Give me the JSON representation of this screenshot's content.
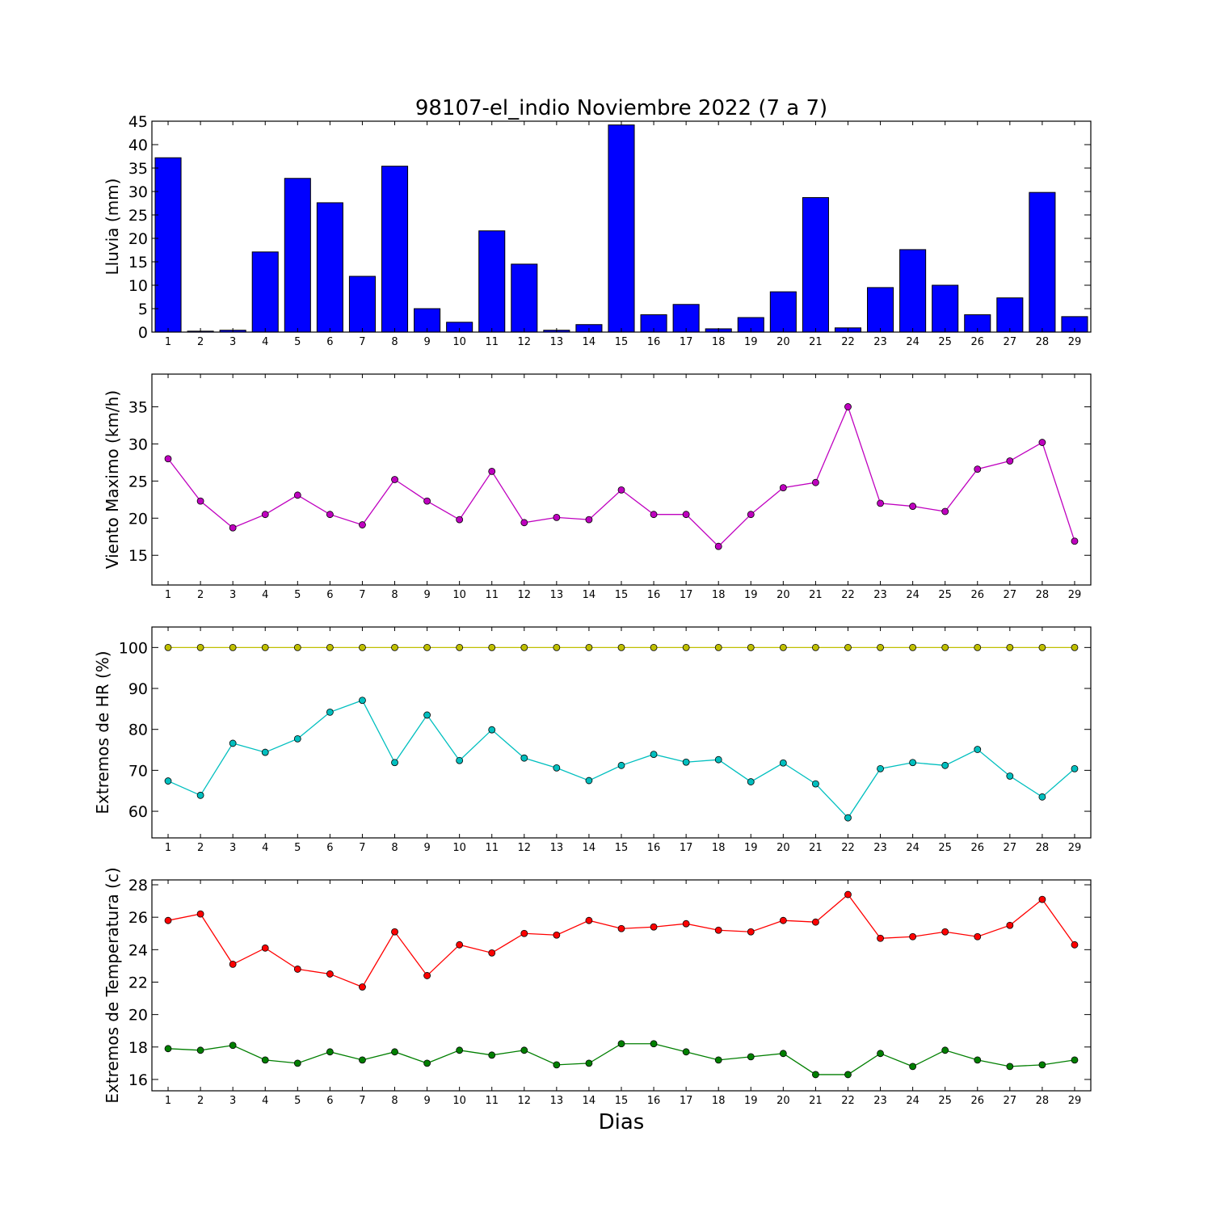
{
  "figure": {
    "title": "98107-el_indio Noviembre 2022  (7 a 7)",
    "xlabel": "Dias"
  },
  "chart_data": [
    {
      "type": "bar",
      "ylabel": "Lluvia (mm)",
      "categories": [
        1,
        2,
        3,
        4,
        5,
        6,
        7,
        8,
        9,
        10,
        11,
        12,
        13,
        14,
        15,
        16,
        17,
        18,
        19,
        20,
        21,
        22,
        23,
        24,
        25,
        26,
        27,
        28,
        29
      ],
      "ylim": [
        0,
        45
      ],
      "yticks": [
        0,
        5,
        10,
        15,
        20,
        25,
        30,
        35,
        40,
        45
      ],
      "color": "#0000ff",
      "series": [
        {
          "values": [
            37.2,
            0.2,
            0.4,
            17.1,
            32.8,
            27.6,
            11.9,
            35.4,
            5.0,
            2.1,
            21.6,
            14.5,
            0.4,
            1.6,
            44.2,
            3.7,
            5.9,
            0.7,
            3.1,
            8.6,
            28.7,
            0.9,
            9.5,
            17.6,
            10.0,
            3.7,
            7.3,
            29.8,
            3.3
          ]
        }
      ]
    },
    {
      "type": "line",
      "ylabel": "Viento Maximo (km/h)",
      "x": [
        1,
        2,
        3,
        4,
        5,
        6,
        7,
        8,
        9,
        10,
        11,
        12,
        13,
        14,
        15,
        16,
        17,
        18,
        19,
        20,
        21,
        22,
        23,
        24,
        25,
        26,
        27,
        28,
        29
      ],
      "ylim": [
        11,
        39.4
      ],
      "yticks": [
        15,
        20,
        25,
        30,
        35
      ],
      "series": [
        {
          "color": "#bf00bf",
          "values": [
            28.0,
            22.3,
            18.7,
            20.5,
            23.1,
            20.5,
            19.1,
            25.2,
            22.3,
            19.8,
            26.3,
            19.4,
            20.1,
            19.8,
            23.8,
            20.5,
            20.5,
            16.2,
            20.5,
            24.1,
            24.8,
            35.0,
            22.0,
            21.6,
            20.9,
            26.6,
            27.7,
            30.2,
            16.9
          ]
        }
      ]
    },
    {
      "type": "line",
      "ylabel": "Extremos de HR (%)",
      "x": [
        1,
        2,
        3,
        4,
        5,
        6,
        7,
        8,
        9,
        10,
        11,
        12,
        13,
        14,
        15,
        16,
        17,
        18,
        19,
        20,
        21,
        22,
        23,
        24,
        25,
        26,
        27,
        28,
        29
      ],
      "ylim": [
        53.5,
        105
      ],
      "yticks": [
        60,
        70,
        80,
        90,
        100
      ],
      "series": [
        {
          "color": "#bfbf00",
          "values": [
            100,
            100,
            100,
            100,
            100,
            100,
            100,
            100,
            100,
            100,
            100,
            100,
            100,
            100,
            100,
            100,
            100,
            100,
            100,
            100,
            100,
            100,
            100,
            100,
            100,
            100,
            100,
            100,
            100
          ]
        },
        {
          "color": "#00bfbf",
          "values": [
            67.4,
            63.9,
            76.6,
            74.4,
            77.7,
            84.2,
            87.1,
            71.9,
            83.5,
            72.4,
            79.9,
            73.0,
            70.6,
            67.5,
            71.2,
            73.9,
            72.0,
            72.6,
            67.2,
            71.8,
            66.7,
            58.4,
            70.4,
            71.9,
            71.2,
            75.1,
            68.6,
            63.5,
            70.4
          ]
        }
      ]
    },
    {
      "type": "line",
      "ylabel": "Extremos de Temperatura (c)",
      "x": [
        1,
        2,
        3,
        4,
        5,
        6,
        7,
        8,
        9,
        10,
        11,
        12,
        13,
        14,
        15,
        16,
        17,
        18,
        19,
        20,
        21,
        22,
        23,
        24,
        25,
        26,
        27,
        28,
        29
      ],
      "ylim": [
        15.3,
        28.3
      ],
      "yticks": [
        16,
        18,
        20,
        22,
        24,
        26,
        28
      ],
      "series": [
        {
          "color": "#ff0000",
          "values": [
            25.8,
            26.2,
            23.1,
            24.1,
            22.8,
            22.5,
            21.7,
            25.1,
            22.4,
            24.3,
            23.8,
            25.0,
            24.9,
            25.8,
            25.3,
            25.4,
            25.6,
            25.2,
            25.1,
            25.8,
            25.7,
            27.4,
            24.7,
            24.8,
            25.1,
            24.8,
            25.5,
            27.1,
            24.3
          ]
        },
        {
          "color": "#007f00",
          "values": [
            17.9,
            17.8,
            18.1,
            17.2,
            17.0,
            17.7,
            17.2,
            17.7,
            17.0,
            17.8,
            17.5,
            17.8,
            16.9,
            17.0,
            18.2,
            18.2,
            17.7,
            17.2,
            17.4,
            17.6,
            16.3,
            16.3,
            17.6,
            16.8,
            17.8,
            17.2,
            16.8,
            16.9,
            17.2
          ]
        }
      ]
    }
  ]
}
